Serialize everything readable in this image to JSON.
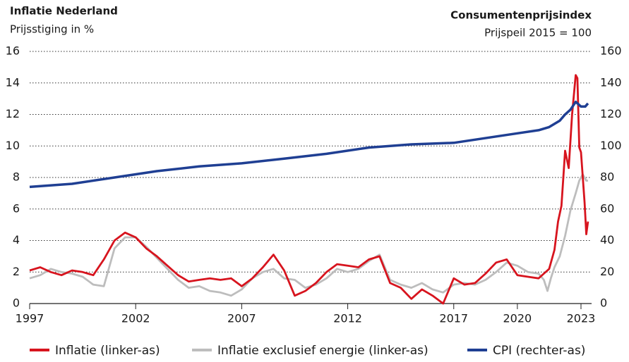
{
  "chart_data": {
    "type": "line",
    "title": "Inflatie Nederland",
    "subtitle": "Prijsstiging in %",
    "y2_title": "Consumentenprijsindex",
    "y2_subtitle": "Prijspeil 2015 = 100",
    "xlim": [
      1997,
      2023.5
    ],
    "xticks": [
      1997,
      2002,
      2007,
      2012,
      2017,
      2020,
      2023
    ],
    "ylim": [
      0,
      16
    ],
    "yticks": [
      0,
      2,
      4,
      6,
      8,
      10,
      12,
      14,
      16
    ],
    "y2lim": [
      0,
      160
    ],
    "y2ticks": [
      0,
      20,
      40,
      60,
      80,
      100,
      120,
      140,
      160
    ],
    "grid": true,
    "legend": "bottom",
    "series": [
      {
        "name": "Inflatie (linker-as)",
        "color": "#d7141e",
        "x": [
          1997,
          1997.5,
          1998,
          1998.5,
          1999,
          1999.5,
          2000,
          2000.5,
          2001,
          2001.5,
          2002,
          2002.5,
          2003,
          2003.5,
          2004,
          2004.5,
          2005,
          2005.5,
          2006,
          2006.5,
          2007,
          2007.5,
          2008,
          2008.5,
          2009,
          2009.5,
          2010,
          2010.5,
          2011,
          2011.5,
          2012,
          2012.5,
          2013,
          2013.5,
          2014,
          2014.5,
          2015,
          2015.5,
          2016,
          2016.5,
          2017,
          2017.5,
          2018,
          2018.5,
          2019,
          2019.5,
          2020,
          2020.5,
          2021,
          2021.25,
          2021.5,
          2021.75,
          2021.92,
          2022.08,
          2022.25,
          2022.42,
          2022.58,
          2022.75,
          2022.83,
          2022.92,
          2023,
          2023.17,
          2023.25,
          2023.33
        ],
        "values": [
          2.1,
          2.3,
          2.0,
          1.8,
          2.1,
          2.0,
          1.8,
          2.8,
          4.0,
          4.5,
          4.2,
          3.5,
          3.0,
          2.4,
          1.8,
          1.4,
          1.5,
          1.6,
          1.5,
          1.6,
          1.1,
          1.6,
          2.3,
          3.1,
          2.1,
          0.5,
          0.8,
          1.3,
          2.0,
          2.5,
          2.4,
          2.3,
          2.8,
          3.0,
          1.3,
          1.0,
          0.3,
          0.9,
          0.5,
          0.0,
          1.6,
          1.2,
          1.3,
          1.9,
          2.6,
          2.8,
          1.8,
          1.7,
          1.6,
          1.9,
          2.2,
          3.4,
          5.2,
          6.2,
          9.7,
          8.6,
          12.0,
          14.5,
          14.3,
          9.9,
          9.6,
          6.4,
          4.4,
          5.2
        ]
      },
      {
        "name": "Inflatie exclusief energie (linker-as)",
        "color": "#bdbdbd",
        "x": [
          1997,
          1997.5,
          1998,
          1998.5,
          1999,
          1999.5,
          2000,
          2000.5,
          2001,
          2001.5,
          2002,
          2002.5,
          2003,
          2003.5,
          2004,
          2004.5,
          2005,
          2005.5,
          2006,
          2006.5,
          2007,
          2007.5,
          2008,
          2008.5,
          2009,
          2009.5,
          2010,
          2010.5,
          2011,
          2011.5,
          2012,
          2012.5,
          2013,
          2013.5,
          2014,
          2014.5,
          2015,
          2015.5,
          2016,
          2016.5,
          2017,
          2017.5,
          2018,
          2018.5,
          2019,
          2019.5,
          2020,
          2020.5,
          2021,
          2021.25,
          2021.42,
          2021.58,
          2021.75,
          2022,
          2022.25,
          2022.5,
          2022.75,
          2022.92,
          2023.08,
          2023.25,
          2023.33
        ],
        "values": [
          1.6,
          1.8,
          2.2,
          2.0,
          1.9,
          1.7,
          1.2,
          1.1,
          3.5,
          4.2,
          4.2,
          3.6,
          2.9,
          2.2,
          1.5,
          1.0,
          1.1,
          0.8,
          0.7,
          0.5,
          0.9,
          1.6,
          2.0,
          2.2,
          1.6,
          1.5,
          1.0,
          1.2,
          1.6,
          2.2,
          2.0,
          2.2,
          2.7,
          3.1,
          1.5,
          1.2,
          1.0,
          1.3,
          0.9,
          0.7,
          1.2,
          1.3,
          1.2,
          1.5,
          2.0,
          2.6,
          2.4,
          2.0,
          1.9,
          1.5,
          0.8,
          1.6,
          2.3,
          3.0,
          4.3,
          5.9,
          7.0,
          7.8,
          8.2,
          7.8,
          7.8
        ]
      },
      {
        "name": "CPI (rechter-as)",
        "color": "#1f3f93",
        "axis": "y2",
        "x": [
          1997,
          1999,
          2001,
          2003,
          2005,
          2007,
          2009,
          2011,
          2013,
          2015,
          2017,
          2018,
          2019,
          2020,
          2021,
          2021.5,
          2022,
          2022.25,
          2022.5,
          2022.75,
          2023,
          2023.2,
          2023.33
        ],
        "values": [
          74,
          76,
          80,
          84,
          87,
          89,
          92,
          95,
          99,
          101,
          102,
          104,
          106,
          108,
          110,
          112,
          116,
          120,
          123,
          128,
          125,
          125,
          127
        ]
      }
    ]
  }
}
